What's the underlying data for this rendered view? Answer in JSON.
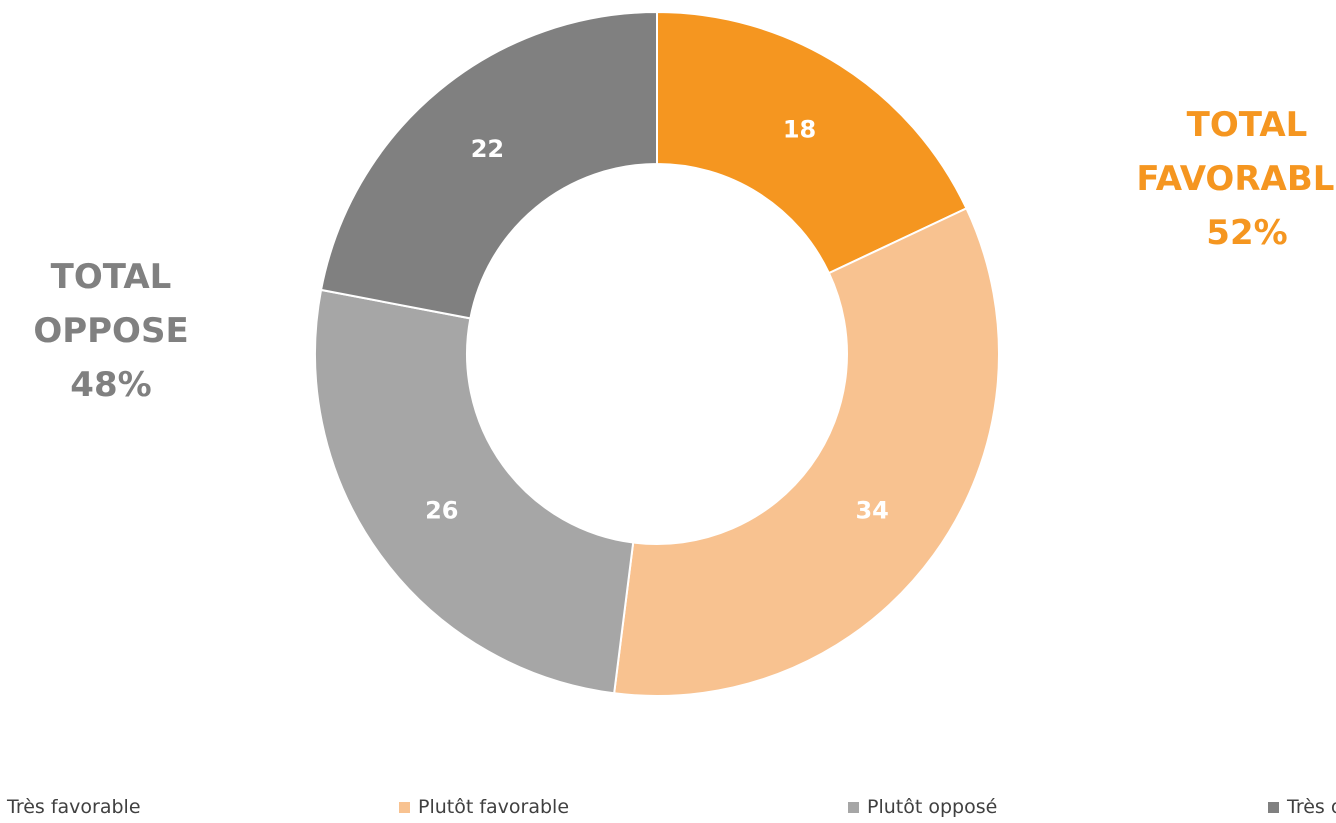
{
  "chart_data": {
    "type": "pie",
    "style": "donut",
    "slices": [
      {
        "label": "Très favorable",
        "value": 18,
        "color": "#f59620"
      },
      {
        "label": "Plutôt favorable",
        "value": 34,
        "color": "#f8c290"
      },
      {
        "label": "Plutôt opposé",
        "value": 26,
        "color": "#a6a6a6"
      },
      {
        "label": "Très opposé",
        "value": 22,
        "color": "#808080"
      }
    ],
    "legend_position": "bottom",
    "annotations": {
      "total_favorable": {
        "line1": "TOTAL",
        "line2": "FAVORABLE",
        "value": "52%",
        "color": "#f59620"
      },
      "total_opposed": {
        "line1": "TOTAL",
        "line2": "OPPOSE",
        "value": "48%",
        "color": "#808080"
      }
    }
  }
}
